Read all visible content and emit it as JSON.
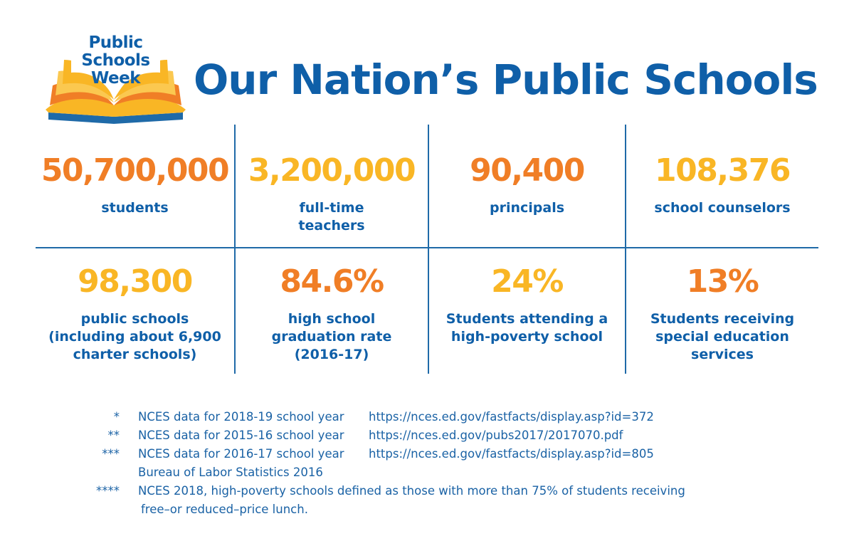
{
  "logo": {
    "line1": "Public",
    "line2": "Schools",
    "line3": "Week"
  },
  "title": "Our Nation’s Public Schools",
  "stats": [
    {
      "value": "50,700,000",
      "label": [
        "students"
      ]
    },
    {
      "value": "3,200,000",
      "label": [
        "full-time",
        "teachers"
      ]
    },
    {
      "value": "90,400",
      "label": [
        "principals"
      ]
    },
    {
      "value": "108,376",
      "label": [
        "school counselors"
      ]
    },
    {
      "value": "98,300",
      "label": [
        "public schools",
        "(including about 6,900",
        "charter schools)"
      ]
    },
    {
      "value": "84.6%",
      "label": [
        "high school",
        "graduation rate",
        "(2016-17)"
      ]
    },
    {
      "value": "24%",
      "label": [
        "Students attending a",
        "high-poverty school"
      ]
    },
    {
      "value": "13%",
      "label": [
        "Students receiving",
        "special education",
        "services"
      ]
    }
  ],
  "colors": {
    "blue": "#0f5fa8",
    "orange": "#f07e26",
    "gold": "#f9b625"
  },
  "footnotes": [
    {
      "mark": "*",
      "text": "NCES data for 2018-19 school year",
      "url": "https://nces.ed.gov/fastfacts/display.asp?id=372"
    },
    {
      "mark": "**",
      "text": "NCES data for 2015-16 school year",
      "url": "https://nces.ed.gov/pubs2017/2017070.pdf"
    },
    {
      "mark": "***",
      "text": "NCES data for 2016-17 school year",
      "url": "https://nces.ed.gov/fastfacts/display.asp?id=805"
    },
    {
      "mark": "",
      "text": "Bureau of Labor Statistics 2016",
      "url": ""
    },
    {
      "mark": "****",
      "text": "NCES 2018, high-poverty schools defined as those with more than 75% of students receiving",
      "url": ""
    },
    {
      "mark": "",
      "text": "free–or reduced–price lunch.",
      "url": ""
    }
  ]
}
